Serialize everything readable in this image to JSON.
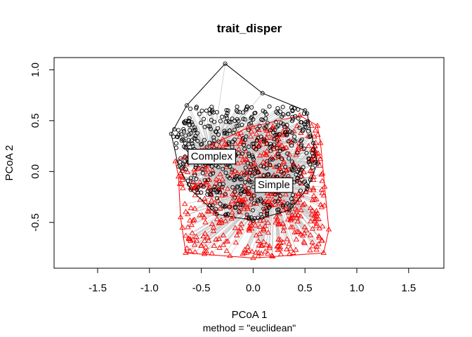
{
  "chart_data": {
    "type": "scatter",
    "title": "trait_disper",
    "xlabel": "PCoA 1",
    "ylabel": "PCoA 2",
    "subtitle": "method = \"euclidean\"",
    "xlim": [
      -1.92,
      1.84
    ],
    "ylim": [
      -0.95,
      1.12
    ],
    "x_ticks": [
      -1.5,
      -1.0,
      -0.5,
      0.0,
      0.5,
      1.0,
      1.5
    ],
    "x_tick_labels": [
      "-1.5",
      "-1.0",
      "-0.5",
      "0.0",
      "0.5",
      "1.0",
      "1.5"
    ],
    "y_ticks": [
      -0.5,
      0.0,
      0.5,
      1.0
    ],
    "y_tick_labels": [
      "-0.5",
      "0.0",
      "0.5",
      "1.0"
    ],
    "grid": false,
    "series": [
      {
        "name": "Complex",
        "marker": "circle",
        "color": "#000000",
        "centroid": [
          -0.4,
          0.15
        ],
        "hull": [
          [
            -0.27,
            1.06
          ],
          [
            0.09,
            0.77
          ],
          [
            0.5,
            0.6
          ],
          [
            0.52,
            0.57
          ],
          [
            0.58,
            0.28
          ],
          [
            0.62,
            0.08
          ],
          [
            0.52,
            -0.17
          ],
          [
            0.35,
            -0.38
          ],
          [
            0.0,
            -0.48
          ],
          [
            -0.35,
            -0.42
          ],
          [
            -0.6,
            -0.18
          ],
          [
            -0.72,
            0.05
          ],
          [
            -0.79,
            0.37
          ],
          [
            -0.64,
            0.65
          ]
        ],
        "spread": {
          "x": [
            -0.78,
            0.62
          ],
          "y": [
            -0.47,
            0.64
          ],
          "count": 520
        }
      },
      {
        "name": "Simple",
        "marker": "triangle",
        "color": "#ff0000",
        "centroid": [
          0.2,
          -0.13
        ],
        "hull": [
          [
            0.45,
            0.55
          ],
          [
            0.62,
            0.45
          ],
          [
            0.65,
            0.28
          ],
          [
            0.69,
            -0.15
          ],
          [
            0.73,
            -0.57
          ],
          [
            0.68,
            -0.8
          ],
          [
            0.0,
            -0.85
          ],
          [
            -0.65,
            -0.8
          ],
          [
            -0.7,
            -0.45
          ],
          [
            -0.72,
            -0.05
          ],
          [
            -0.75,
            0.1
          ],
          [
            -0.05,
            0.43
          ]
        ],
        "spread": {
          "x": [
            -0.72,
            0.72
          ],
          "y": [
            -0.84,
            0.45
          ],
          "count": 560
        }
      }
    ],
    "group_labels": [
      {
        "text": "Complex",
        "x": -0.4,
        "y": 0.15
      },
      {
        "text": "Simple",
        "x": 0.2,
        "y": -0.13
      }
    ]
  }
}
